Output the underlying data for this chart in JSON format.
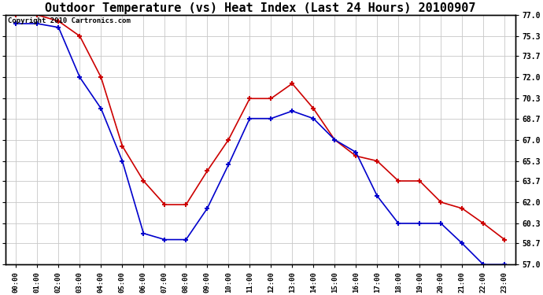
{
  "title": "Outdoor Temperature (vs) Heat Index (Last 24 Hours) 20100907",
  "copyright_text": "Copyright 2010 Cartronics.com",
  "x_labels": [
    "00:00",
    "01:00",
    "02:00",
    "03:00",
    "04:00",
    "05:00",
    "06:00",
    "07:00",
    "08:00",
    "09:00",
    "10:00",
    "11:00",
    "12:00",
    "13:00",
    "14:00",
    "15:00",
    "16:00",
    "17:00",
    "18:00",
    "19:00",
    "20:00",
    "21:00",
    "22:00",
    "23:00"
  ],
  "heat_index": [
    77.0,
    77.0,
    76.5,
    75.3,
    72.0,
    66.5,
    63.7,
    61.8,
    61.8,
    64.5,
    67.0,
    70.3,
    70.3,
    71.5,
    69.5,
    67.0,
    65.7,
    65.3,
    63.7,
    63.7,
    62.0,
    61.5,
    60.3,
    59.0
  ],
  "outdoor_temp": [
    76.3,
    76.3,
    76.0,
    72.0,
    69.5,
    65.3,
    59.5,
    59.0,
    59.0,
    61.5,
    65.0,
    68.7,
    68.7,
    69.3,
    68.7,
    67.0,
    66.0,
    62.5,
    60.3,
    60.3,
    60.3,
    58.7,
    57.0,
    57.0
  ],
  "heat_index_color": "#cc0000",
  "outdoor_temp_color": "#0000cc",
  "background_color": "#ffffff",
  "grid_color": "#c8c8c8",
  "ylim_min": 57.0,
  "ylim_max": 77.0,
  "yticks": [
    57.0,
    58.7,
    60.3,
    62.0,
    63.7,
    65.3,
    67.0,
    68.7,
    70.3,
    72.0,
    73.7,
    75.3,
    77.0
  ],
  "title_fontsize": 11,
  "copyright_fontsize": 6.5
}
